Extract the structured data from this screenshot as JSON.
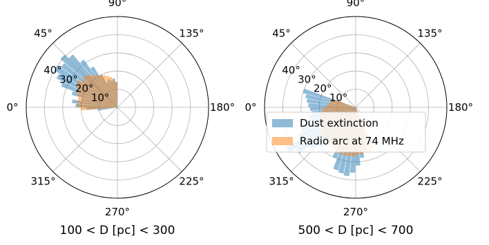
{
  "chart_data": [
    {
      "type": "polar-bar",
      "title": "100 < D [pc] < 300",
      "angle_ticks": [
        "0°",
        "45°",
        "90°",
        "135°",
        "180°",
        "225°",
        "270°",
        "315°"
      ],
      "radial_ticks": [
        "10°",
        "20°",
        "30°",
        "40°"
      ],
      "rlim": [
        0,
        50
      ],
      "grid": true,
      "theta_range_deg": [
        90,
        200
      ],
      "bin_width_deg": 5,
      "series": [
        {
          "name": "Dust extinction",
          "color": "#1f77b4",
          "alpha": 0.5,
          "values": [
            14,
            16,
            15,
            16,
            15,
            20,
            26,
            32,
            38,
            41,
            38,
            40,
            37,
            33,
            26,
            20,
            25,
            23,
            17,
            11,
            0,
            0
          ]
        },
        {
          "name": "Radio arc at 74 MHz",
          "color": "#ff7f0e",
          "alpha": 0.5,
          "values": [
            14,
            15,
            17,
            18,
            19,
            20,
            21,
            22,
            24,
            25,
            24,
            26,
            25,
            24,
            23,
            22,
            22,
            22,
            20,
            0,
            0,
            0
          ]
        }
      ]
    },
    {
      "type": "polar-bar",
      "title": "500 < D [pc] < 700",
      "angle_ticks": [
        "0°",
        "45°",
        "90°",
        "135°",
        "180°",
        "225°",
        "270°",
        "315°"
      ],
      "radial_ticks": [
        "10°",
        "20°",
        "30°",
        "40°"
      ],
      "rlim": [
        0,
        50
      ],
      "grid": true,
      "theta_range_deg": [
        40,
        180
      ],
      "bin_width_deg": 5,
      "series": [
        {
          "name": "Dust extinction",
          "color": "#1f77b4",
          "alpha": 0.5,
          "values": [
            0,
            0,
            0,
            0,
            0,
            0,
            0,
            0,
            0,
            0,
            0,
            0,
            0,
            0,
            0,
            0,
            0,
            0,
            0,
            0,
            0,
            0,
            0,
            0,
            30,
            28,
            27,
            26,
            25,
            24,
            26,
            28,
            32,
            35,
            44,
            40,
            33,
            29,
            26,
            22,
            25,
            30,
            36,
            37,
            38,
            36,
            32,
            28,
            24,
            20,
            0,
            0,
            0,
            0,
            0,
            0,
            0,
            0,
            0,
            0,
            0,
            0,
            0,
            0,
            0,
            0,
            0,
            0
          ]
        },
        {
          "name": "Radio arc at 74 MHz",
          "color": "#ff7f0e",
          "alpha": 0.5,
          "values": [
            0,
            0,
            0,
            0,
            0,
            0,
            0,
            0,
            0,
            0,
            0,
            0,
            0,
            0,
            0,
            0,
            0,
            0,
            0,
            0,
            0,
            0,
            0,
            0,
            13,
            14,
            15,
            16,
            18,
            19,
            20,
            20,
            22,
            22,
            23,
            23,
            24,
            24,
            25,
            25,
            26,
            26,
            27,
            27,
            27,
            27,
            26,
            26,
            25,
            25,
            24,
            0,
            0,
            0,
            0,
            0,
            0,
            0,
            0,
            0,
            0,
            0,
            0,
            0,
            0,
            0,
            0,
            0
          ]
        }
      ]
    }
  ],
  "legend": {
    "placement": "right-center",
    "entries": [
      "Dust extinction",
      "Radio arc at 74 MHz"
    ]
  }
}
